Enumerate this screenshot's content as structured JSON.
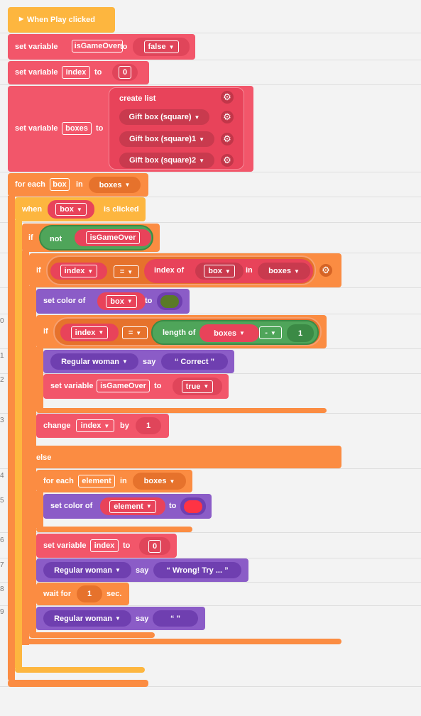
{
  "line_numbers": [
    "0",
    "1",
    "2",
    "3",
    "4",
    "5",
    "6",
    "7",
    "8",
    "9"
  ],
  "hat": {
    "label": "When Play clicked"
  },
  "b1": {
    "prefix": "set variable",
    "var": "isGameOver",
    "to": "to",
    "value": "false"
  },
  "b2": {
    "prefix": "set variable",
    "var": "index",
    "to": "to",
    "value": "0"
  },
  "b3": {
    "prefix": "set variable",
    "var": "boxes",
    "to": "to",
    "list_label": "create list",
    "items": [
      "Gift box (square)",
      "Gift box (square)1",
      "Gift box (square)2"
    ]
  },
  "foreach1": {
    "prefix": "for each",
    "var": "box",
    "in": "in",
    "list": "boxes"
  },
  "when": {
    "prefix": "when",
    "target": "box",
    "suffix": "is clicked"
  },
  "if1": {
    "if": "if",
    "not": "not",
    "var": "isGameOver"
  },
  "if2": {
    "if": "if",
    "left": "index",
    "op": "=",
    "index_of": "index of",
    "item": "box",
    "in": "in",
    "list": "boxes"
  },
  "setcolor1": {
    "prefix": "set color of",
    "target": "box",
    "to": "to",
    "color": "#5a7a27"
  },
  "if3": {
    "if": "if",
    "left": "index",
    "op": "=",
    "length_of": "length of",
    "list": "boxes",
    "minus": "-",
    "num": "1"
  },
  "say1": {
    "actor": "Regular woman",
    "verb": "say",
    "text": "“  Correct  ”"
  },
  "setvar3": {
    "prefix": "set variable",
    "var": "isGameOver",
    "to": "to",
    "value": "true"
  },
  "change": {
    "prefix": "change",
    "var": "index",
    "by": "by",
    "value": "1"
  },
  "else": {
    "label": "else"
  },
  "foreach2": {
    "prefix": "for each",
    "var": "element",
    "in": "in",
    "list": "boxes"
  },
  "setcolor2": {
    "prefix": "set color of",
    "target": "element",
    "to": "to",
    "color": "#ff3344"
  },
  "setvar4": {
    "prefix": "set variable",
    "var": "index",
    "to": "to",
    "value": "0"
  },
  "say2": {
    "actor": "Regular woman",
    "verb": "say",
    "text": "“  Wrong! Try ...  ”"
  },
  "wait": {
    "prefix": "wait for",
    "value": "1",
    "suffix": "sec."
  },
  "say3": {
    "actor": "Regular woman",
    "verb": "say",
    "text": "“      ”"
  },
  "icons": {
    "gear": "gear-icon",
    "chevron": "chevron-down-icon",
    "play": "play-triangle-icon"
  }
}
